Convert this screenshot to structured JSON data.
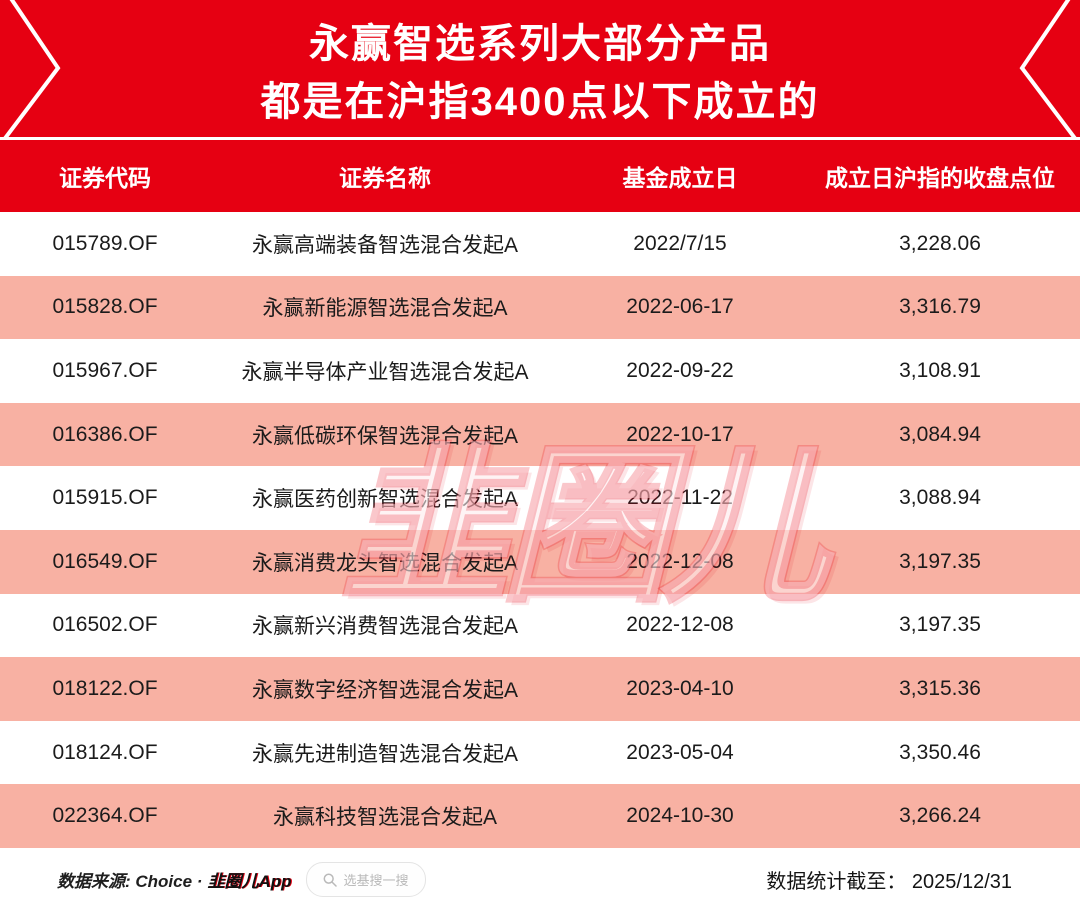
{
  "banner": {
    "title_line1": "永赢智选系列大部分产品",
    "title_line2": "都是在沪指3400点以下成立的"
  },
  "table": {
    "columns": [
      "证券代码",
      "证券名称",
      "基金成立日",
      "成立日沪指的收盘点位"
    ],
    "rows": [
      [
        "015789.OF",
        "永赢高端装备智选混合发起A",
        "2022/7/15",
        "3,228.06"
      ],
      [
        "015828.OF",
        "永赢新能源智选混合发起A",
        "2022-06-17",
        "3,316.79"
      ],
      [
        "015967.OF",
        "永赢半导体产业智选混合发起A",
        "2022-09-22",
        "3,108.91"
      ],
      [
        "016386.OF",
        "永赢低碳环保智选混合发起A",
        "2022-10-17",
        "3,084.94"
      ],
      [
        "015915.OF",
        "永赢医药创新智选混合发起A",
        "2022-11-22",
        "3,088.94"
      ],
      [
        "016549.OF",
        "永赢消费龙头智选混合发起A",
        "2022-12-08",
        "3,197.35"
      ],
      [
        "016502.OF",
        "永赢新兴消费智选混合发起A",
        "2022-12-08",
        "3,197.35"
      ],
      [
        "018122.OF",
        "永赢数字经济智选混合发起A",
        "2023-04-10",
        "3,315.36"
      ],
      [
        "018124.OF",
        "永赢先进制造智选混合发起A",
        "2023-05-04",
        "3,350.46"
      ],
      [
        "022364.OF",
        "永赢科技智选混合发起A",
        "2024-10-30",
        "3,266.24"
      ]
    ]
  },
  "chart_data": {
    "type": "table",
    "title": "永赢智选系列大部分产品都是在沪指3400点以下成立的",
    "columns": [
      "证券代码",
      "证券名称",
      "基金成立日",
      "成立日沪指的收盘点位"
    ],
    "rows": [
      {
        "code": "015789.OF",
        "name": "永赢高端装备智选混合发起A",
        "inception_date": "2022/7/15",
        "sse_close": 3228.06
      },
      {
        "code": "015828.OF",
        "name": "永赢新能源智选混合发起A",
        "inception_date": "2022-06-17",
        "sse_close": 3316.79
      },
      {
        "code": "015967.OF",
        "name": "永赢半导体产业智选混合发起A",
        "inception_date": "2022-09-22",
        "sse_close": 3108.91
      },
      {
        "code": "016386.OF",
        "name": "永赢低碳环保智选混合发起A",
        "inception_date": "2022-10-17",
        "sse_close": 3084.94
      },
      {
        "code": "015915.OF",
        "name": "永赢医药创新智选混合发起A",
        "inception_date": "2022-11-22",
        "sse_close": 3088.94
      },
      {
        "code": "016549.OF",
        "name": "永赢消费龙头智选混合发起A",
        "inception_date": "2022-12-08",
        "sse_close": 3197.35
      },
      {
        "code": "016502.OF",
        "name": "永赢新兴消费智选混合发起A",
        "inception_date": "2022-12-08",
        "sse_close": 3197.35
      },
      {
        "code": "018122.OF",
        "name": "永赢数字经济智选混合发起A",
        "inception_date": "2023-04-10",
        "sse_close": 3315.36
      },
      {
        "code": "018124.OF",
        "name": "永赢先进制造智选混合发起A",
        "inception_date": "2023-05-04",
        "sse_close": 3350.46
      },
      {
        "code": "022364.OF",
        "name": "永赢科技智选混合发起A",
        "inception_date": "2024-10-30",
        "sse_close": 3266.24
      }
    ]
  },
  "watermark": {
    "text": "韭圈儿"
  },
  "footer": {
    "source_label": "数据来源: Choice ·",
    "app_name": "韭圈儿App",
    "search_placeholder": "选基搜一搜",
    "search_icon": "magnifier-icon",
    "cutoff": "数据统计截至： 2025/12/31"
  },
  "colors": {
    "banner_red": "#E60012",
    "row_pink": "#F8B1A3",
    "text_dark": "#1b1b1b",
    "header_text": "#ffffff"
  }
}
